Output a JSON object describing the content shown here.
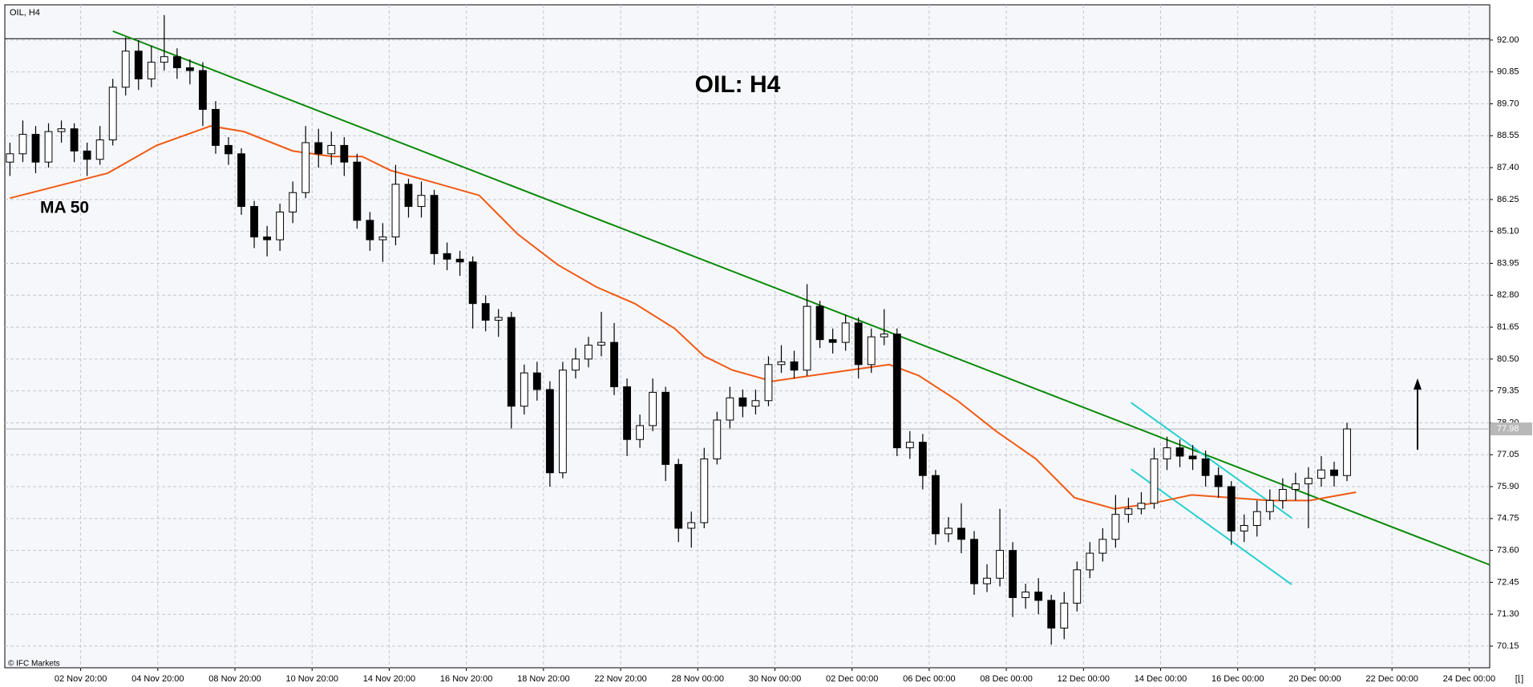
{
  "chart_data": {
    "type": "candlestick",
    "header": "OIL, H4",
    "title": "OIL: H4",
    "footer": "© IFC Markets",
    "corner": "[⌊]",
    "xlim": [
      -0.4,
      115.1
    ],
    "ylim": [
      69.37,
      93.27
    ],
    "grid": true,
    "xticks": [
      {
        "value": 5.5,
        "label": "02 Nov 20:00"
      },
      {
        "value": 11.5,
        "label": "04 Nov 20:00"
      },
      {
        "value": 17.5,
        "label": "08 Nov 20:00"
      },
      {
        "value": 23.5,
        "label": "10 Nov 20:00"
      },
      {
        "value": 29.5,
        "label": "14 Nov 20:00"
      },
      {
        "value": 35.5,
        "label": "16 Nov 20:00"
      },
      {
        "value": 41.5,
        "label": "18 Nov 20:00"
      },
      {
        "value": 47.5,
        "label": "22 Nov 20:00"
      },
      {
        "value": 53.5,
        "label": "28 Nov 00:00"
      },
      {
        "value": 59.5,
        "label": "30 Nov 00:00"
      },
      {
        "value": 65.5,
        "label": "02 Dec 00:00"
      },
      {
        "value": 71.5,
        "label": "06 Dec 00:00"
      },
      {
        "value": 77.5,
        "label": "08 Dec 00:00"
      },
      {
        "value": 83.5,
        "label": "12 Dec 00:00"
      },
      {
        "value": 89.5,
        "label": "14 Dec 00:00"
      },
      {
        "value": 95.5,
        "label": "16 Dec 00:00"
      },
      {
        "value": 101.5,
        "label": "20 Dec 00:00"
      },
      {
        "value": 107.5,
        "label": "22 Dec 00:00"
      },
      {
        "value": 113.5,
        "label": "24 Dec 00:00"
      }
    ],
    "yticks": [
      {
        "value": 92,
        "label": "92.00"
      },
      {
        "value": 90.85,
        "label": "90.85"
      },
      {
        "value": 89.7,
        "label": "89.70"
      },
      {
        "value": 88.55,
        "label": "88.55"
      },
      {
        "value": 87.4,
        "label": "87.40"
      },
      {
        "value": 86.25,
        "label": "86.25"
      },
      {
        "value": 85.1,
        "label": "85.10"
      },
      {
        "value": 83.95,
        "label": "83.95"
      },
      {
        "value": 82.8,
        "label": "82.80"
      },
      {
        "value": 81.65,
        "label": "81.65"
      },
      {
        "value": 80.5,
        "label": "80.50"
      },
      {
        "value": 79.35,
        "label": "79.35"
      },
      {
        "value": 78.2,
        "label": "78.20"
      },
      {
        "value": 77.05,
        "label": "77.05"
      },
      {
        "value": 75.9,
        "label": "75.90"
      },
      {
        "value": 74.75,
        "label": "74.75"
      },
      {
        "value": 73.6,
        "label": "73.60"
      },
      {
        "value": 72.45,
        "label": "72.45"
      },
      {
        "value": 71.3,
        "label": "71.30"
      },
      {
        "value": 70.15,
        "label": "70.15"
      }
    ],
    "last_price": {
      "value": 77.98,
      "label": "77.98"
    },
    "level_line": 92.05,
    "candles": {
      "up_color": "#ffffff",
      "down_color": "#000000",
      "open": [
        87.6,
        87.9,
        88.6,
        87.6,
        88.7,
        88.8,
        88.0,
        87.7,
        88.4,
        90.3,
        91.6,
        90.6,
        91.2,
        91.4,
        91.0,
        90.9,
        89.5,
        88.2,
        87.9,
        86.0,
        84.9,
        84.8,
        85.8,
        86.5,
        88.3,
        87.9,
        88.2,
        87.6,
        85.5,
        84.8,
        84.9,
        86.8,
        86.0,
        86.4,
        84.3,
        84.1,
        84.0,
        82.5,
        81.9,
        82.0,
        78.8,
        80.0,
        79.4,
        76.4,
        80.1,
        80.5,
        81.0,
        81.1,
        79.5,
        77.6,
        78.1,
        79.3,
        76.7,
        74.4,
        74.6,
        76.9,
        78.3,
        79.1,
        78.8,
        79.0,
        80.3,
        80.4,
        80.1,
        82.4,
        81.2,
        81.1,
        81.8,
        80.3,
        81.3,
        81.4,
        77.3,
        77.5,
        76.3,
        74.2,
        74.4,
        74.0,
        72.4,
        72.6,
        73.6,
        71.9,
        72.1,
        71.8,
        70.8,
        71.7,
        72.9,
        73.5,
        74.0,
        74.9,
        75.1,
        75.3,
        76.9,
        77.3,
        77.0,
        76.9,
        76.3,
        75.9,
        74.3,
        74.5,
        75.0,
        75.4,
        75.8,
        76.0,
        76.2,
        76.5,
        76.3
      ],
      "high": [
        88.3,
        89.1,
        88.9,
        89.0,
        89.1,
        89.0,
        88.3,
        88.9,
        90.6,
        92.1,
        92.0,
        91.8,
        92.9,
        91.7,
        91.3,
        91.2,
        89.8,
        88.5,
        88.1,
        86.2,
        85.3,
        86.1,
        86.9,
        88.9,
        88.8,
        88.7,
        88.5,
        87.9,
        85.8,
        85.4,
        87.5,
        87.0,
        86.9,
        86.6,
        84.7,
        84.4,
        84.2,
        82.8,
        82.3,
        82.2,
        80.3,
        80.4,
        79.7,
        80.4,
        80.9,
        81.3,
        82.2,
        81.8,
        79.8,
        78.5,
        79.8,
        79.5,
        76.9,
        75.0,
        77.3,
        78.6,
        79.5,
        79.4,
        79.4,
        80.6,
        81.0,
        80.8,
        83.2,
        82.6,
        81.6,
        82.1,
        82.0,
        81.6,
        82.3,
        81.6,
        77.9,
        77.8,
        76.5,
        74.8,
        75.3,
        74.3,
        73.1,
        75.1,
        73.9,
        72.4,
        72.6,
        72.0,
        72.1,
        73.2,
        73.9,
        74.4,
        75.6,
        75.5,
        75.7,
        77.3,
        77.7,
        77.6,
        77.4,
        77.2,
        76.6,
        76.1,
        74.9,
        75.4,
        75.8,
        76.2,
        76.4,
        76.6,
        77.0,
        76.8,
        78.2
      ],
      "low": [
        87.1,
        87.6,
        87.2,
        87.4,
        88.3,
        87.6,
        87.1,
        87.5,
        88.2,
        90.0,
        90.2,
        90.3,
        90.9,
        90.6,
        90.4,
        88.9,
        87.9,
        87.5,
        85.7,
        84.5,
        84.2,
        84.4,
        85.4,
        86.3,
        87.4,
        87.5,
        87.1,
        85.2,
        84.4,
        84.0,
        84.6,
        85.6,
        85.6,
        83.9,
        83.7,
        83.5,
        81.6,
        81.5,
        81.3,
        78.0,
        78.5,
        79.0,
        75.9,
        76.2,
        79.8,
        80.2,
        80.6,
        79.2,
        77.0,
        77.3,
        77.9,
        76.1,
        73.9,
        73.7,
        74.4,
        76.7,
        78.0,
        78.4,
        78.5,
        78.8,
        80.0,
        79.8,
        79.9,
        80.9,
        80.7,
        80.8,
        79.8,
        80.0,
        81.0,
        77.0,
        76.9,
        75.8,
        73.8,
        73.9,
        73.5,
        72.0,
        72.1,
        72.3,
        71.2,
        71.5,
        71.3,
        70.2,
        70.4,
        71.4,
        72.6,
        73.2,
        73.7,
        74.6,
        74.9,
        75.1,
        76.5,
        76.6,
        76.5,
        75.9,
        75.5,
        73.8,
        73.9,
        74.1,
        74.7,
        75.1,
        75.4,
        74.4,
        75.9,
        75.9,
        76.1
      ],
      "close": [
        87.9,
        88.6,
        87.6,
        88.7,
        88.8,
        88.0,
        87.7,
        88.4,
        90.3,
        91.6,
        90.6,
        91.2,
        91.4,
        91.0,
        90.9,
        89.5,
        88.2,
        87.9,
        86.0,
        84.9,
        84.8,
        85.8,
        86.5,
        88.3,
        87.9,
        88.2,
        87.6,
        85.5,
        84.8,
        84.9,
        86.8,
        86.0,
        86.4,
        84.3,
        84.1,
        84.0,
        82.5,
        81.9,
        82.0,
        78.8,
        80.0,
        79.4,
        76.4,
        80.1,
        80.5,
        81.0,
        81.1,
        79.5,
        77.6,
        78.1,
        79.3,
        76.7,
        74.4,
        74.6,
        76.9,
        78.3,
        79.1,
        78.8,
        79.0,
        80.3,
        80.4,
        80.1,
        82.4,
        81.2,
        81.1,
        81.8,
        80.3,
        81.3,
        81.4,
        77.3,
        77.5,
        76.3,
        74.2,
        74.4,
        74.0,
        72.4,
        72.6,
        73.6,
        71.9,
        72.1,
        71.8,
        70.8,
        71.7,
        72.9,
        73.5,
        74.0,
        74.9,
        75.1,
        75.3,
        76.9,
        77.3,
        77.0,
        76.9,
        76.3,
        75.9,
        74.3,
        74.5,
        75.0,
        75.4,
        75.8,
        76.0,
        76.2,
        76.5,
        76.3,
        77.98
      ]
    },
    "series": [
      {
        "name": "MA 50",
        "color": "#f05a14",
        "x": [
          0,
          7.6,
          11.4,
          15.6,
          18.2,
          22,
          25.1,
          27.4,
          29.6,
          32.7,
          36.5,
          39.5,
          42.6,
          45.6,
          48.6,
          51.7,
          54,
          56.2,
          59.3,
          62.3,
          65.3,
          68.4,
          70.7,
          73.7,
          76.7,
          79.8,
          82.8,
          85.9,
          88.9,
          91.9,
          95,
          98,
          101.1,
          104.7
        ],
        "values": [
          86.3,
          87.2,
          88.2,
          88.9,
          88.7,
          88.0,
          87.8,
          87.8,
          87.3,
          86.9,
          86.4,
          85.0,
          83.9,
          83.1,
          82.5,
          81.6,
          80.6,
          80.1,
          79.7,
          79.9,
          80.1,
          80.3,
          79.9,
          79.0,
          77.9,
          76.9,
          75.5,
          75.1,
          75.3,
          75.6,
          75.5,
          75.4,
          75.4,
          75.7
        ]
      }
    ],
    "trendlines": [
      {
        "color": "#0a8a0a",
        "x": [
          8,
          115.1
        ],
        "values": [
          92.32,
          73.08
        ]
      },
      {
        "color": "#2ad0d0",
        "x": [
          87.2,
          99.7
        ],
        "values": [
          78.93,
          74.77
        ]
      },
      {
        "color": "#2ad0d0",
        "x": [
          87.2,
          99.7
        ],
        "values": [
          76.53,
          72.37
        ]
      }
    ]
  }
}
